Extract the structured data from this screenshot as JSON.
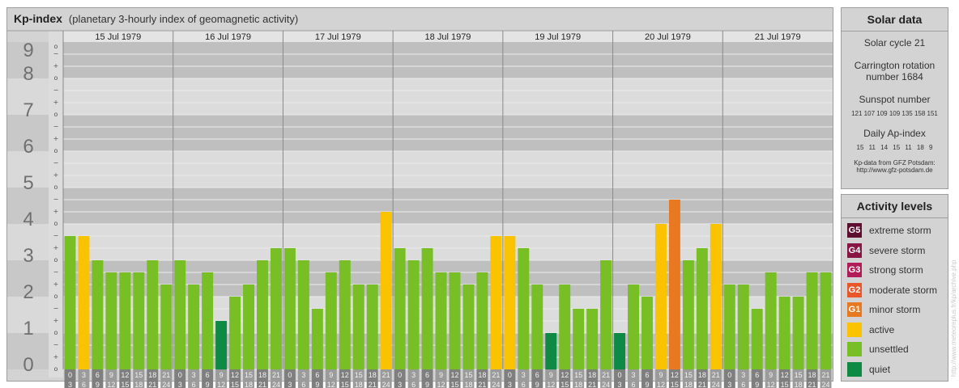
{
  "header": {
    "title": "Kp-index",
    "subtitle": "(planetary 3-hourly index of geomagnetic activity)"
  },
  "chart_data": {
    "type": "bar",
    "title": "Kp-index",
    "subtitle": "(planetary 3-hourly index of geomagnetic activity)",
    "ylim": [
      0,
      9
    ],
    "y_ticks": [
      "0",
      "1",
      "2",
      "3",
      "4",
      "5",
      "6",
      "7",
      "8",
      "9"
    ],
    "sub_ticks": [
      "o",
      "+",
      "−"
    ],
    "days": [
      "15 Jul 1979",
      "16 Jul 1979",
      "17 Jul 1979",
      "18 Jul 1979",
      "19 Jul 1979",
      "20 Jul 1979",
      "21 Jul 1979"
    ],
    "interval_labels": [
      [
        "0",
        "3"
      ],
      [
        "3",
        "6"
      ],
      [
        "6",
        "9"
      ],
      [
        "9",
        "12"
      ],
      [
        "12",
        "15"
      ],
      [
        "15",
        "18"
      ],
      [
        "18",
        "21"
      ],
      [
        "21",
        "24"
      ]
    ],
    "values": [
      [
        3.667,
        3.667,
        3.0,
        2.667,
        2.667,
        2.667,
        3.0,
        2.333
      ],
      [
        3.0,
        2.333,
        2.667,
        1.333,
        2.0,
        2.333,
        3.0,
        3.333
      ],
      [
        3.333,
        3.0,
        1.667,
        2.667,
        3.0,
        2.333,
        2.333,
        4.333
      ],
      [
        3.333,
        3.0,
        3.333,
        2.667,
        2.667,
        2.333,
        2.667,
        3.667
      ],
      [
        3.667,
        3.333,
        2.333,
        1.0,
        2.333,
        1.667,
        1.667,
        3.0
      ],
      [
        1.0,
        2.333,
        2.0,
        4.0,
        4.667,
        3.0,
        3.333,
        4.0
      ],
      [
        2.333,
        2.333,
        1.667,
        2.667,
        2.0,
        2.0,
        2.667,
        2.667
      ]
    ],
    "levels": [
      "unsettled",
      "active",
      "unsettled",
      "unsettled",
      "unsettled",
      "unsettled",
      "unsettled",
      "unsettled",
      "unsettled",
      "unsettled",
      "unsettled",
      "quiet",
      "unsettled",
      "unsettled",
      "unsettled",
      "unsettled",
      "unsettled",
      "unsettled",
      "unsettled",
      "unsettled",
      "unsettled",
      "unsettled",
      "unsettled",
      "active",
      "unsettled",
      "unsettled",
      "unsettled",
      "unsettled",
      "unsettled",
      "unsettled",
      "unsettled",
      "active",
      "active",
      "unsettled",
      "unsettled",
      "quiet",
      "unsettled",
      "unsettled",
      "unsettled",
      "unsettled",
      "quiet",
      "unsettled",
      "unsettled",
      "active",
      "minor storm",
      "unsettled",
      "unsettled",
      "active",
      "unsettled",
      "unsettled",
      "unsettled",
      "unsettled",
      "unsettled",
      "unsettled",
      "unsettled",
      "unsettled"
    ],
    "grid": true,
    "legend_position": "right"
  },
  "colors": {
    "unsettled": "#77bf25",
    "active": "#f9c300",
    "quiet": "#0f8a45",
    "minor storm": "#e97920",
    "moderate storm": "#e9562a",
    "strong storm": "#b11b58",
    "severe storm": "#891545",
    "extreme storm": "#5e0e2e",
    "band_dark": "#bfbfbf",
    "band_light": "#dcdcdc",
    "axis_cell": "#7f7f7f",
    "axis_cell_alt": "#9b9b9b"
  },
  "solar": {
    "title": "Solar data",
    "cycle": "Solar cycle 21",
    "carrington_1": "Carrington rotation",
    "carrington_2": "number 1684",
    "sunspot_title": "Sunspot number",
    "sunspot_values": "121 107 109 109 135 158 151",
    "ap_title": "Daily Ap-index",
    "ap_values": "15 11 14 15 11 18 9",
    "source_1": "Kp-data from GFZ Potsdam:",
    "source_2": "http://www.gfz-potsdam.de"
  },
  "activity": {
    "title": "Activity levels",
    "items": [
      {
        "code": "G5",
        "label": "extreme storm",
        "color": "#5e0e2e"
      },
      {
        "code": "G4",
        "label": "severe storm",
        "color": "#891545"
      },
      {
        "code": "G3",
        "label": "strong storm",
        "color": "#b11b58"
      },
      {
        "code": "G2",
        "label": "moderate storm",
        "color": "#e9562a"
      },
      {
        "code": "G1",
        "label": "minor storm",
        "color": "#e97920"
      },
      {
        "code": "",
        "label": "active",
        "color": "#f9c300"
      },
      {
        "code": "",
        "label": "unsettled",
        "color": "#77bf25"
      },
      {
        "code": "",
        "label": "quiet",
        "color": "#0f8a45"
      }
    ]
  },
  "watermark": "http://www.meteoreplus.fr/kp/archive.php"
}
